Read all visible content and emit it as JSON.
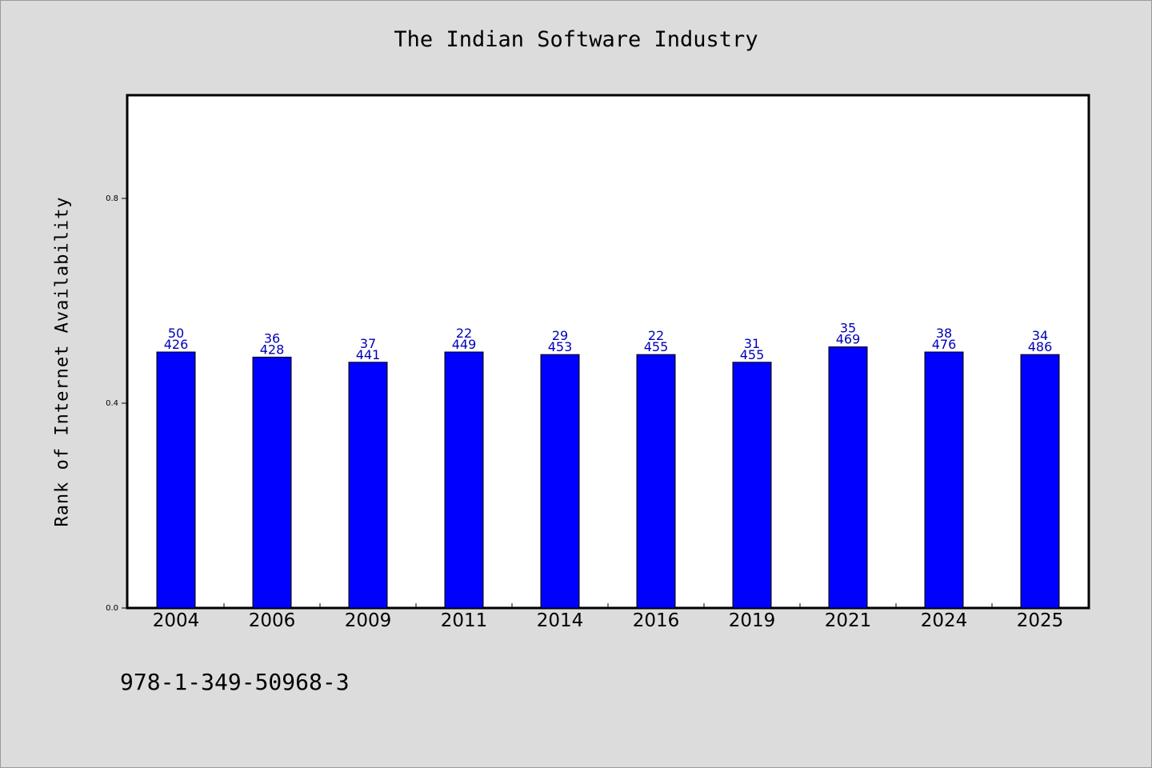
{
  "chart_data": {
    "type": "bar",
    "title": "The Indian Software Industry",
    "xlabel": "",
    "ylabel": "Rank of Internet Availability",
    "categories": [
      "2004",
      "2006",
      "2009",
      "2011",
      "2014",
      "2016",
      "2019",
      "2021",
      "2024",
      "2025"
    ],
    "values": [
      0.5,
      0.49,
      0.48,
      0.5,
      0.495,
      0.495,
      0.48,
      0.51,
      0.5,
      0.495
    ],
    "label_top": [
      "50",
      "36",
      "37",
      "22",
      "29",
      "22",
      "31",
      "35",
      "38",
      "34"
    ],
    "label_bottom": [
      "426",
      "428",
      "441",
      "449",
      "453",
      "455",
      "455",
      "469",
      "476",
      "486"
    ],
    "yticks": [
      0.0,
      0.4,
      0.8
    ],
    "ytick_labels": [
      "0.0",
      "0.4",
      "0.8"
    ],
    "ylim": [
      0,
      1.0
    ],
    "grid": false,
    "colors": {
      "bar": "#0000ff",
      "data_label": "#0000b4"
    }
  },
  "footer_text": "978-1-349-50968-3"
}
